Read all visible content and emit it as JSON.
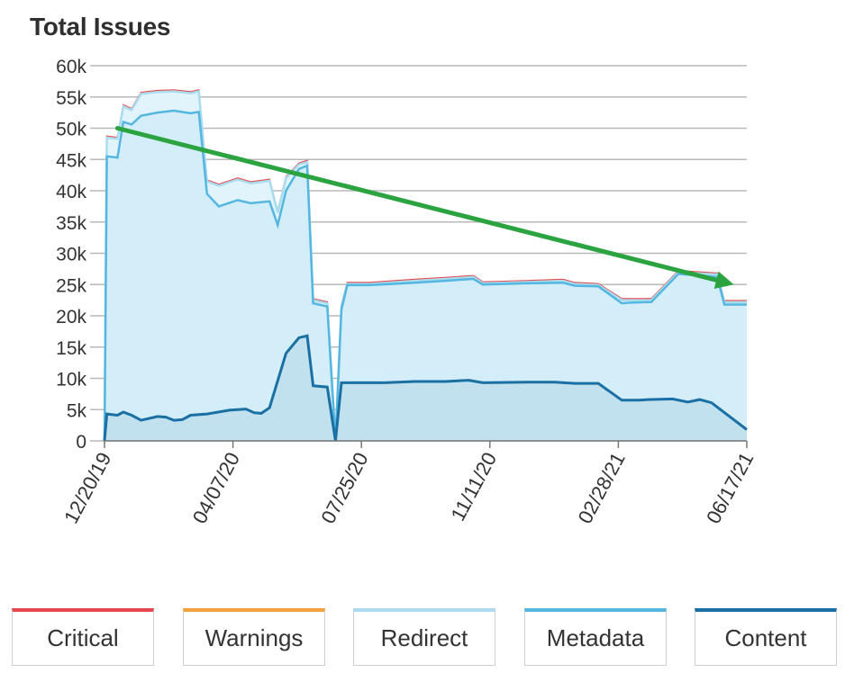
{
  "chart_data": {
    "type": "area",
    "title": "Total Issues",
    "ylim": [
      0,
      60000
    ],
    "y_ticks": [
      "60k",
      "55k",
      "50k",
      "45k",
      "40k",
      "35k",
      "30k",
      "25k",
      "20k",
      "15k",
      "10k",
      "5k",
      "0"
    ],
    "x_ticks": [
      "12/20/19",
      "04/07/20",
      "07/25/20",
      "11/11/20",
      "02/28/21",
      "06/17/21"
    ],
    "x_range": [
      "12/20/19",
      "06/17/21"
    ],
    "grid": true,
    "legend_position": "bottom",
    "series": [
      {
        "name": "Critical",
        "color": "#e8474c"
      },
      {
        "name": "Warnings",
        "color": "#f2a23a"
      },
      {
        "name": "Redirect",
        "color": "#a9dcef"
      },
      {
        "name": "Metadata",
        "color": "#55b6e0"
      },
      {
        "name": "Content",
        "color": "#1a6fa3"
      }
    ],
    "totals": {
      "x": [
        "12/20/19",
        "12/22/19",
        "12/31/19",
        "01/05/20",
        "01/12/20",
        "01/20/20",
        "02/03/20",
        "02/17/20",
        "03/02/20",
        "03/09/20",
        "03/16/20",
        "03/26/20",
        "04/11/20",
        "04/22/20",
        "05/08/20",
        "05/15/20",
        "05/22/20",
        "06/02/20",
        "06/09/20",
        "06/14/20",
        "06/26/20",
        "07/03/20",
        "07/08/20",
        "07/13/20",
        "08/01/20",
        "09/08/20",
        "10/04/20",
        "10/28/20",
        "11/05/20",
        "12/12/20",
        "01/12/21",
        "01/22/21",
        "02/11/21",
        "03/03/21",
        "03/10/21",
        "03/28/21",
        "04/20/21",
        "05/23/21",
        "05/29/21",
        "06/17/21"
      ],
      "metadata": [
        0,
        45500,
        45300,
        51000,
        50600,
        52000,
        52500,
        52800,
        52400,
        52600,
        39500,
        37500,
        38500,
        38000,
        38300,
        34500,
        40000,
        43500,
        44000,
        22000,
        21500,
        0,
        21000,
        24900,
        24900,
        25300,
        25600,
        25900,
        25000,
        25200,
        25300,
        24800,
        24700,
        22000,
        22100,
        22200,
        26700,
        26200,
        21800,
        21800
      ],
      "redirect": [
        0,
        48500,
        48300,
        53500,
        52900,
        55500,
        55800,
        55900,
        55600,
        55900,
        41500,
        40800,
        41800,
        41200,
        41600,
        36500,
        42000,
        44200,
        44600,
        22500,
        22000,
        0,
        21500,
        25100,
        25100,
        25600,
        25900,
        26200,
        25200,
        25400,
        25600,
        25100,
        24900,
        22500,
        22500,
        22500,
        27000,
        26600,
        22200,
        22200
      ]
    },
    "content": {
      "x": [
        "12/20/19",
        "12/22/19",
        "12/31/19",
        "01/05/20",
        "01/12/20",
        "01/20/20",
        "02/03/20",
        "02/10/20",
        "02/17/20",
        "02/24/20",
        "03/02/20",
        "03/16/20",
        "04/04/20",
        "04/18/20",
        "04/25/20",
        "05/01/20",
        "05/08/20",
        "05/22/20",
        "06/02/20",
        "06/09/20",
        "06/14/20",
        "06/26/20",
        "07/03/20",
        "07/08/20",
        "08/14/20",
        "09/08/20",
        "10/04/20",
        "10/24/20",
        "11/05/20",
        "12/12/20",
        "01/05/21",
        "01/22/21",
        "02/11/21",
        "03/03/21",
        "03/18/21",
        "03/25/21",
        "04/15/21",
        "04/28/21",
        "05/08/21",
        "05/18/21",
        "06/17/21"
      ],
      "values": [
        0,
        4300,
        4100,
        4600,
        4100,
        3300,
        3900,
        3800,
        3300,
        3400,
        4100,
        4300,
        4900,
        5100,
        4500,
        4400,
        5300,
        14000,
        16500,
        16800,
        8800,
        8600,
        0,
        9300,
        9300,
        9500,
        9500,
        9700,
        9300,
        9400,
        9400,
        9200,
        9200,
        6500,
        6500,
        6600,
        6700,
        6200,
        6600,
        6100,
        1800
      ]
    },
    "annotation": {
      "type": "trend-arrow",
      "from": {
        "x": "12/31/19",
        "y": 50000
      },
      "to": {
        "x": "06/06/21",
        "y": 25000
      },
      "color": "#2aa340"
    }
  }
}
